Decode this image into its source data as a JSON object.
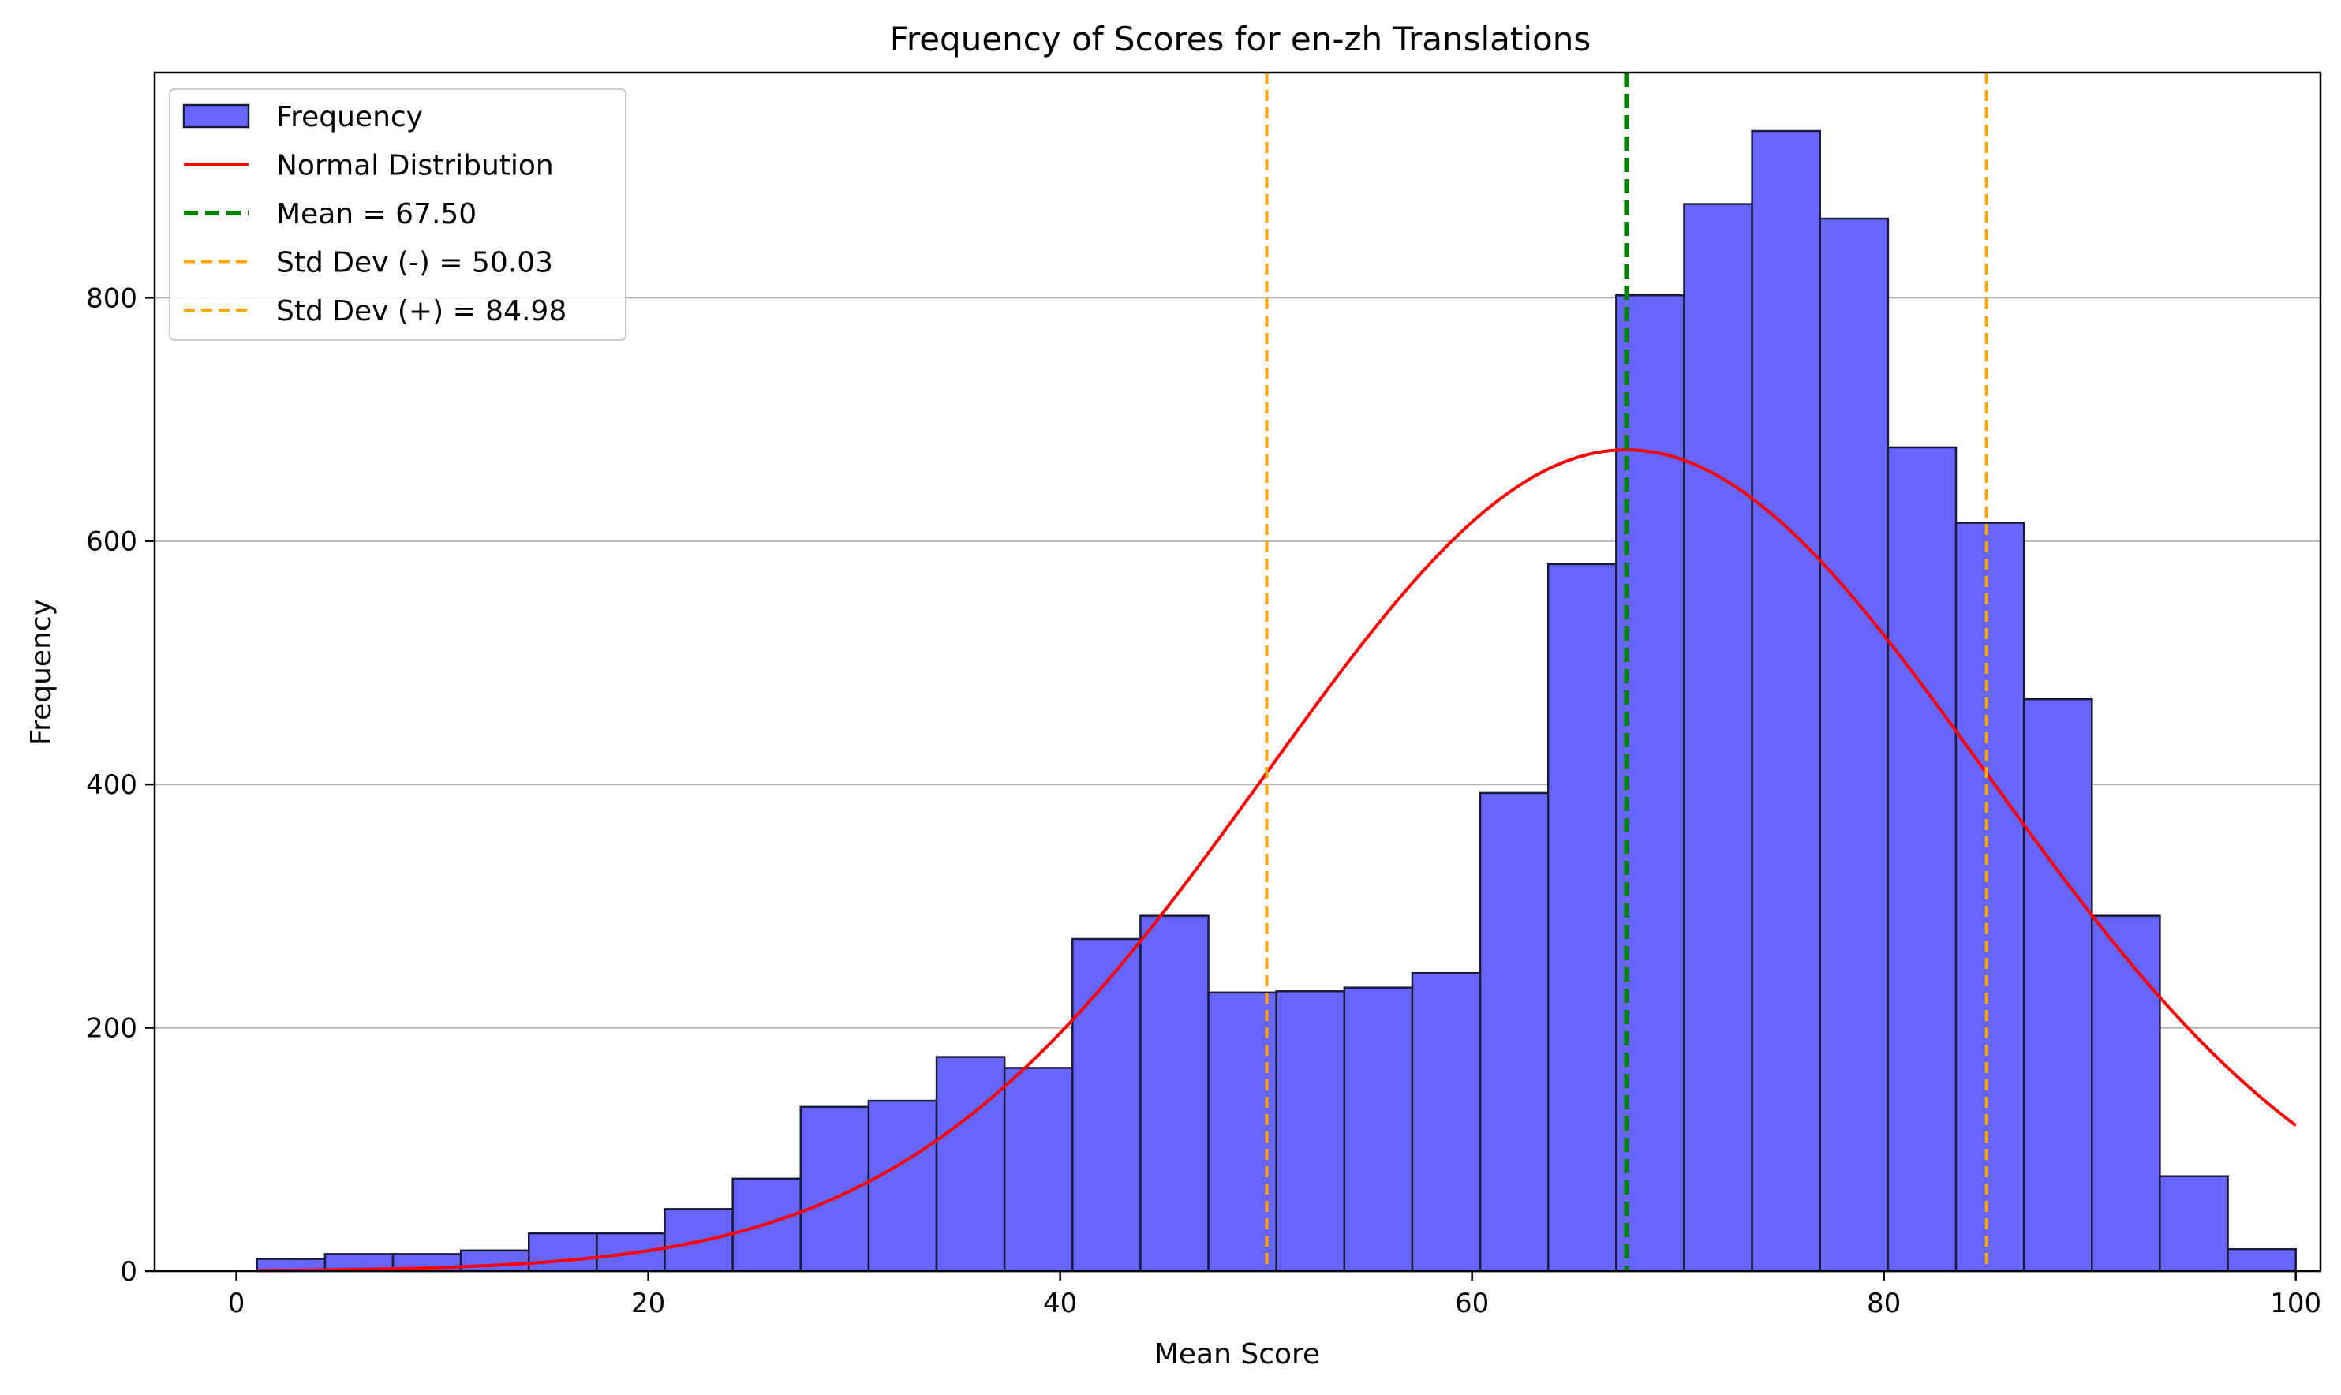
{
  "chart_data": {
    "type": "bar",
    "title": "Frequency of Scores for en-zh Translations",
    "xlabel": "Mean Score",
    "ylabel": "Frequency",
    "xlim": [
      -3.97,
      101.2
    ],
    "ylim": [
      0,
      985
    ],
    "xticks": [
      0,
      20,
      40,
      60,
      80,
      100
    ],
    "yticks": [
      0,
      200,
      400,
      600,
      800
    ],
    "grid": "y",
    "legend_position": "top-left",
    "bins": {
      "start": 1.0,
      "width": 3.3,
      "counts": [
        10,
        14,
        14,
        17,
        31,
        31,
        51,
        76,
        135,
        140,
        176,
        167,
        273,
        292,
        229,
        230,
        233,
        245,
        393,
        581,
        802,
        877,
        937,
        865,
        677,
        615,
        470,
        292,
        78,
        18
      ]
    },
    "normal_curve": {
      "mean": 67.5,
      "std": 17.475,
      "peak": 675,
      "x_start": 1.0,
      "x_end": 100.0
    },
    "mean_line": 67.5,
    "std_lines": [
      50.03,
      84.98
    ],
    "legend": [
      {
        "label": "Frequency",
        "kind": "patch"
      },
      {
        "label": "Normal Distribution",
        "kind": "solid"
      },
      {
        "label": "Mean = 67.50",
        "kind": "dash-green"
      },
      {
        "label": "Std Dev (-) = 50.03",
        "kind": "dash-orange"
      },
      {
        "label": "Std Dev (+) = 84.98",
        "kind": "dash-orange"
      }
    ],
    "colors": {
      "bar_fill": "#6666ff",
      "bar_edge": "#1a1a3a",
      "curve": "#ff0000",
      "mean": "#008000",
      "std": "#ffa500",
      "grid": "#b0b0b0"
    }
  }
}
